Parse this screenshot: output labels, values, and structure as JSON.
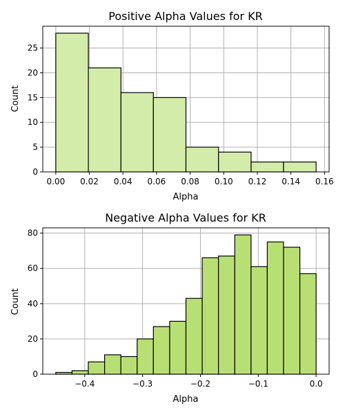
{
  "chart_data": [
    {
      "type": "bar",
      "title": "Positive Alpha Values for KR",
      "xlabel": "Alpha",
      "ylabel": "Count",
      "xlim": [
        -0.00775,
        0.16275
      ],
      "ylim": [
        0,
        29.4
      ],
      "xticks": [
        0.0,
        0.02,
        0.04,
        0.06,
        0.08,
        0.1,
        0.12,
        0.14,
        0.16
      ],
      "xtick_labels": [
        "0.00",
        "0.02",
        "0.04",
        "0.06",
        "0.08",
        "0.10",
        "0.12",
        "0.14",
        "0.16"
      ],
      "yticks": [
        0,
        5,
        10,
        15,
        20,
        25
      ],
      "ytick_labels": [
        "0",
        "5",
        "10",
        "15",
        "20",
        "25"
      ],
      "grid": true,
      "bar_color": "#d3ecaa",
      "bins": [
        {
          "x0": 0.0,
          "x1": 0.0194,
          "count": 28
        },
        {
          "x0": 0.0194,
          "x1": 0.0388,
          "count": 21
        },
        {
          "x0": 0.0388,
          "x1": 0.0581,
          "count": 16
        },
        {
          "x0": 0.0581,
          "x1": 0.0775,
          "count": 15
        },
        {
          "x0": 0.0775,
          "x1": 0.0969,
          "count": 5
        },
        {
          "x0": 0.0969,
          "x1": 0.1163,
          "count": 4
        },
        {
          "x0": 0.1163,
          "x1": 0.1356,
          "count": 2
        },
        {
          "x0": 0.1356,
          "x1": 0.155,
          "count": 2
        }
      ]
    },
    {
      "type": "bar",
      "title": "Negative Alpha Values for KR",
      "xlabel": "Alpha",
      "ylabel": "Count",
      "xlim": [
        -0.4725,
        0.0225
      ],
      "ylim": [
        0,
        83
      ],
      "xticks": [
        -0.4,
        -0.3,
        -0.2,
        -0.1,
        0.0
      ],
      "xtick_labels": [
        "−0.4",
        "−0.3",
        "−0.2",
        "−0.1",
        "0.0"
      ],
      "yticks": [
        0,
        20,
        40,
        60,
        80
      ],
      "ytick_labels": [
        "0",
        "20",
        "40",
        "60",
        "80"
      ],
      "grid": true,
      "bar_color": "#b8df74",
      "bins": [
        {
          "x0": -0.45,
          "x1": -0.4219,
          "count": 1
        },
        {
          "x0": -0.4219,
          "x1": -0.3938,
          "count": 2
        },
        {
          "x0": -0.3938,
          "x1": -0.3656,
          "count": 7
        },
        {
          "x0": -0.3656,
          "x1": -0.3375,
          "count": 11
        },
        {
          "x0": -0.3375,
          "x1": -0.3094,
          "count": 10
        },
        {
          "x0": -0.3094,
          "x1": -0.2813,
          "count": 20
        },
        {
          "x0": -0.2813,
          "x1": -0.2531,
          "count": 27
        },
        {
          "x0": -0.2531,
          "x1": -0.225,
          "count": 30
        },
        {
          "x0": -0.225,
          "x1": -0.1969,
          "count": 43
        },
        {
          "x0": -0.1969,
          "x1": -0.1688,
          "count": 66
        },
        {
          "x0": -0.1688,
          "x1": -0.1406,
          "count": 67
        },
        {
          "x0": -0.1406,
          "x1": -0.1125,
          "count": 79
        },
        {
          "x0": -0.1125,
          "x1": -0.0844,
          "count": 61
        },
        {
          "x0": -0.0844,
          "x1": -0.0563,
          "count": 75
        },
        {
          "x0": -0.0563,
          "x1": -0.0281,
          "count": 72
        },
        {
          "x0": -0.0281,
          "x1": 0.0,
          "count": 57
        }
      ]
    }
  ]
}
